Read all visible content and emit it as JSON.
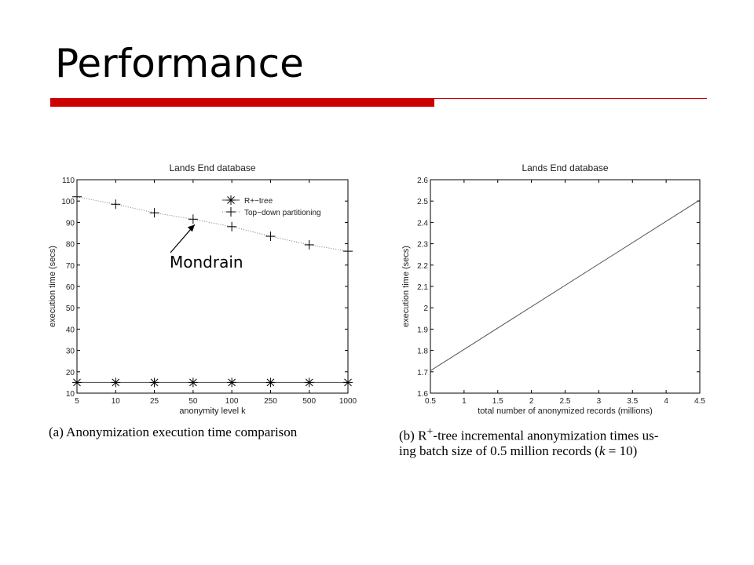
{
  "slide": {
    "title": "Performance",
    "accent_color": "#cc0000"
  },
  "annotation": {
    "label": "Mondrain"
  },
  "captions": {
    "a": "(a) Anonymization execution time comparison",
    "b_part1": "(b) R",
    "b_sup": "+",
    "b_part2": "-tree incremental anonymization times us-",
    "b_line2_pre": "ing batch size of 0.5 million records (",
    "b_k": "k",
    "b_line2_post": " = 10)"
  },
  "chart_data": [
    {
      "type": "line",
      "title": "Lands End database",
      "xlabel": "anonymity level k",
      "ylabel": "execution time (secs)",
      "categories": [
        "5",
        "10",
        "25",
        "50",
        "100",
        "250",
        "500",
        "1000"
      ],
      "ylim": [
        10,
        110
      ],
      "yticks": [
        10,
        20,
        30,
        40,
        50,
        60,
        70,
        80,
        90,
        100,
        110
      ],
      "legend_position": "top-right",
      "grid": false,
      "series": [
        {
          "name": "R+−tree",
          "marker": "asterisk",
          "line": "solid",
          "values": [
            15,
            15,
            15,
            15,
            15,
            15,
            15,
            15
          ]
        },
        {
          "name": "Top−down partitioning",
          "marker": "plus",
          "line": "dotted",
          "values": [
            102,
            98.5,
            94.5,
            91.5,
            88,
            83.5,
            79.5,
            76.5
          ]
        }
      ]
    },
    {
      "type": "line",
      "title": "Lands End database",
      "xlabel": "total number of anonymized records (millions)",
      "ylabel": "execution time (secs)",
      "xlim": [
        0.5,
        4.5
      ],
      "xticks": [
        0.5,
        1,
        1.5,
        2,
        2.5,
        3,
        3.5,
        4,
        4.5
      ],
      "xtick_labels": [
        "0.5",
        "1",
        "1.5",
        "2",
        "2.5",
        "3",
        "3.5",
        "4",
        "4.5"
      ],
      "ylim": [
        1.6,
        2.6
      ],
      "yticks": [
        1.6,
        1.7,
        1.8,
        1.9,
        2.0,
        2.1,
        2.2,
        2.3,
        2.4,
        2.5,
        2.6
      ],
      "ytick_labels": [
        "1.6",
        "1.7",
        "1.8",
        "1.9",
        "2",
        "2.1",
        "2.2",
        "2.3",
        "2.4",
        "2.5",
        "2.6"
      ],
      "grid": false,
      "series": [
        {
          "x": [
            0.5,
            4.5
          ],
          "values": [
            1.705,
            2.505
          ]
        }
      ]
    }
  ]
}
